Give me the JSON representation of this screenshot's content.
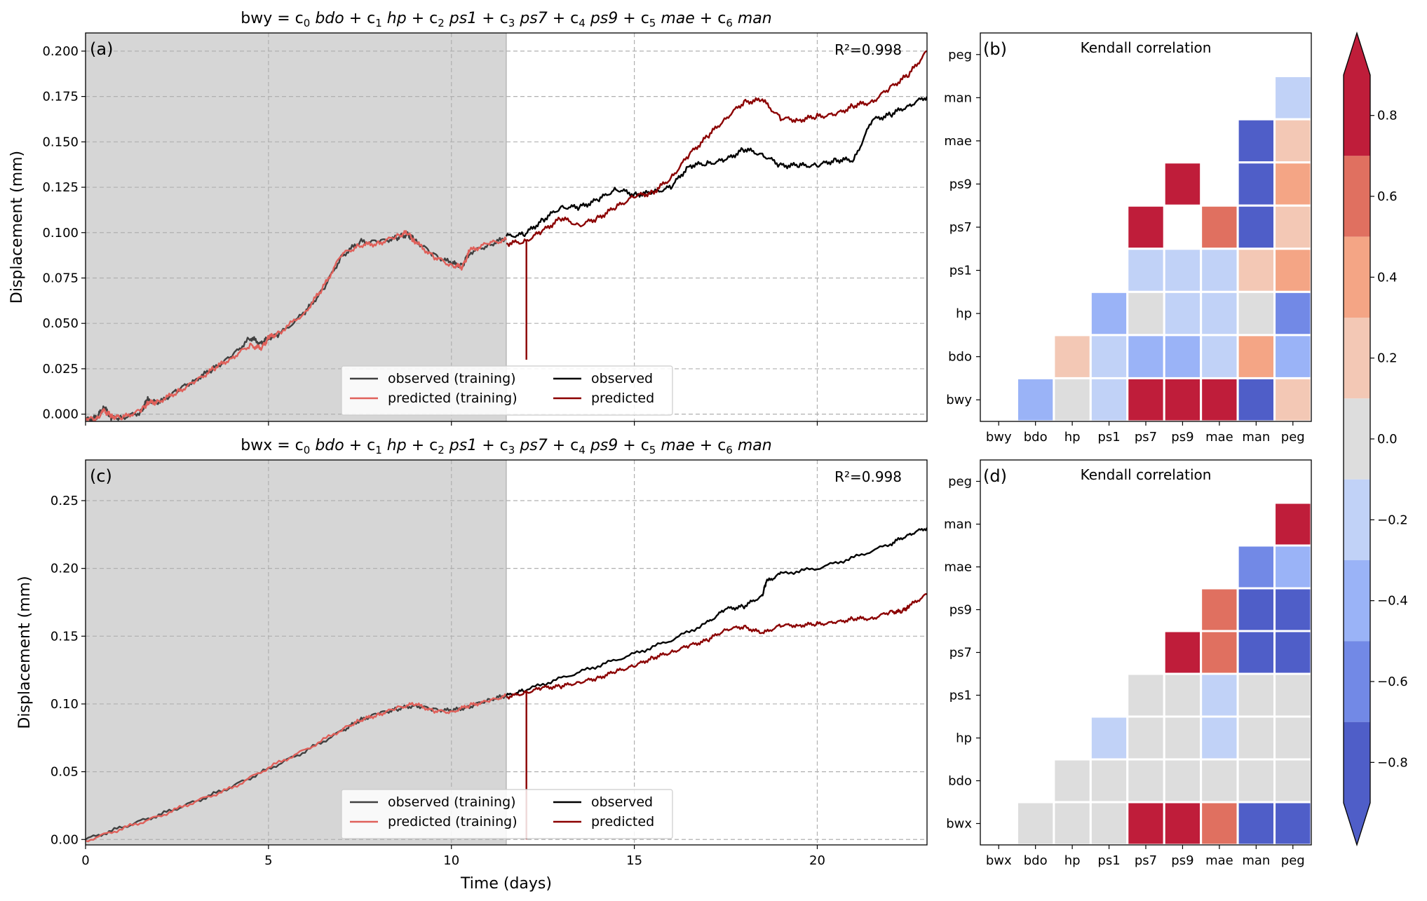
{
  "chart_data": [
    {
      "id": "a",
      "type": "line",
      "panel_label": "(a)",
      "title_parts": {
        "target": "bwy",
        "coefs": [
          "c",
          "c",
          "c",
          "c",
          "c",
          "c",
          "c"
        ],
        "subs": [
          "0",
          "1",
          "2",
          "3",
          "4",
          "5",
          "6"
        ],
        "terms": [
          "bdo",
          "hp",
          "ps1",
          "ps7",
          "ps9",
          "mae",
          "man"
        ]
      },
      "annotation": "R²=0.998",
      "xlabel": "",
      "ylabel": "Displacement (mm)",
      "xlim": [
        0,
        23
      ],
      "ylim": [
        -0.004,
        0.21
      ],
      "xticks": [
        0,
        5,
        10,
        15,
        20
      ],
      "yticks": [
        0.0,
        0.025,
        0.05,
        0.075,
        0.1,
        0.125,
        0.15,
        0.175,
        0.2
      ],
      "ytick_labels": [
        "0.000",
        "0.025",
        "0.050",
        "0.075",
        "0.100",
        "0.125",
        "0.150",
        "0.175",
        "0.200"
      ],
      "show_xtick_labels": false,
      "grid": true,
      "training_end": 11.5,
      "spike": {
        "x": 12.05,
        "y_top": 0.096,
        "y_bottom": 0.03
      },
      "legend": {
        "placement": "lower-center",
        "entries": [
          "observed (training)",
          "predicted (training)",
          "observed",
          "predicted"
        ]
      },
      "series": [
        {
          "name": "observed (training)",
          "color": "#404040",
          "x": [
            0,
            0.3,
            0.5,
            0.7,
            1.0,
            1.5,
            1.7,
            2,
            2.5,
            3,
            3.5,
            4,
            4.5,
            4.8,
            5,
            5.3,
            6,
            6.5,
            7,
            7.5,
            8,
            8.5,
            8.8,
            9,
            9.5,
            10,
            10.3,
            10.5,
            11,
            11.5
          ],
          "y": [
            -0.003,
            -0.002,
            0.004,
            -0.002,
            -0.002,
            0.001,
            0.008,
            0.006,
            0.013,
            0.019,
            0.025,
            0.032,
            0.042,
            0.039,
            0.042,
            0.044,
            0.056,
            0.069,
            0.087,
            0.095,
            0.095,
            0.097,
            0.099,
            0.096,
            0.088,
            0.083,
            0.082,
            0.089,
            0.093,
            0.097
          ]
        },
        {
          "name": "predicted (training)",
          "color": "#e0605a",
          "x": [
            0,
            0.3,
            0.5,
            0.7,
            1.0,
            1.5,
            1.7,
            2,
            2.5,
            3,
            3.5,
            4,
            4.5,
            4.8,
            5,
            5.3,
            6,
            6.5,
            7,
            7.5,
            8,
            8.5,
            8.8,
            9,
            9.5,
            10,
            10.3,
            10.5,
            11,
            11.5
          ],
          "y": [
            -0.002,
            -0.003,
            0.002,
            -0.001,
            -0.002,
            0.002,
            0.006,
            0.007,
            0.012,
            0.018,
            0.025,
            0.031,
            0.038,
            0.036,
            0.042,
            0.045,
            0.056,
            0.07,
            0.088,
            0.093,
            0.094,
            0.098,
            0.1,
            0.095,
            0.087,
            0.082,
            0.081,
            0.09,
            0.094,
            0.096
          ]
        },
        {
          "name": "observed",
          "color": "#000000",
          "x": [
            11.5,
            12,
            12.5,
            13,
            13.5,
            14,
            14.5,
            15,
            15.5,
            16,
            16.5,
            17,
            17.5,
            18,
            18.5,
            19,
            19.5,
            20,
            20.5,
            21,
            21.5,
            22,
            22.5,
            23
          ],
          "y": [
            0.098,
            0.099,
            0.107,
            0.114,
            0.114,
            0.118,
            0.124,
            0.121,
            0.122,
            0.125,
            0.137,
            0.138,
            0.14,
            0.146,
            0.143,
            0.137,
            0.137,
            0.137,
            0.14,
            0.14,
            0.162,
            0.165,
            0.17,
            0.175
          ]
        },
        {
          "name": "predicted",
          "color": "#8b0000",
          "x": [
            11.5,
            12,
            12.5,
            13,
            13.5,
            14,
            14.5,
            15,
            15.5,
            16,
            16.5,
            17,
            17.5,
            18,
            18.5,
            19,
            19.5,
            20,
            20.5,
            21,
            21.5,
            22,
            22.5,
            23
          ],
          "y": [
            0.094,
            0.095,
            0.101,
            0.108,
            0.104,
            0.108,
            0.114,
            0.12,
            0.122,
            0.13,
            0.143,
            0.153,
            0.163,
            0.172,
            0.173,
            0.163,
            0.162,
            0.164,
            0.165,
            0.17,
            0.172,
            0.18,
            0.187,
            0.2
          ]
        }
      ]
    },
    {
      "id": "c",
      "type": "line",
      "panel_label": "(c)",
      "title_parts": {
        "target": "bwx",
        "coefs": [
          "c",
          "c",
          "c",
          "c",
          "c",
          "c",
          "c"
        ],
        "subs": [
          "0",
          "1",
          "2",
          "3",
          "4",
          "5",
          "6"
        ],
        "terms": [
          "bdo",
          "hp",
          "ps1",
          "ps7",
          "ps9",
          "mae",
          "man"
        ]
      },
      "annotation": "R²=0.998",
      "xlabel": "Time (days)",
      "ylabel": "Displacement (mm)",
      "xlim": [
        0,
        23
      ],
      "ylim": [
        -0.004,
        0.28
      ],
      "xticks": [
        0,
        5,
        10,
        15,
        20
      ],
      "yticks": [
        0.0,
        0.05,
        0.1,
        0.15,
        0.2,
        0.25
      ],
      "ytick_labels": [
        "0.00",
        "0.05",
        "0.10",
        "0.15",
        "0.20",
        "0.25"
      ],
      "show_xtick_labels": true,
      "grid": true,
      "training_end": 11.5,
      "spike": {
        "x": 12.05,
        "y_top": 0.11,
        "y_bottom": 0.0
      },
      "legend": {
        "placement": "lower-center",
        "entries": [
          "observed (training)",
          "predicted (training)",
          "observed",
          "predicted"
        ]
      },
      "series": [
        {
          "name": "observed (training)",
          "color": "#404040",
          "x": [
            0,
            1,
            2,
            3,
            4,
            5,
            6,
            7,
            7.5,
            8,
            8.5,
            9,
            9.5,
            10,
            10.5,
            11,
            11.5
          ],
          "y": [
            0.0,
            0.009,
            0.018,
            0.028,
            0.039,
            0.052,
            0.065,
            0.08,
            0.088,
            0.093,
            0.096,
            0.099,
            0.096,
            0.095,
            0.098,
            0.103,
            0.106
          ]
        },
        {
          "name": "predicted (training)",
          "color": "#e0605a",
          "x": [
            0,
            1,
            2,
            3,
            4,
            5,
            6,
            7,
            7.5,
            8,
            8.5,
            9,
            9.5,
            10,
            10.5,
            11,
            11.5
          ],
          "y": [
            -0.001,
            0.008,
            0.017,
            0.028,
            0.038,
            0.053,
            0.066,
            0.081,
            0.088,
            0.092,
            0.097,
            0.1,
            0.095,
            0.094,
            0.099,
            0.102,
            0.106
          ]
        },
        {
          "name": "observed",
          "color": "#000000",
          "x": [
            11.5,
            12,
            13,
            14,
            15,
            16,
            17,
            17.5,
            18,
            18.5,
            18.6,
            19,
            20,
            21,
            22,
            22.5,
            23
          ],
          "y": [
            0.106,
            0.11,
            0.119,
            0.128,
            0.137,
            0.147,
            0.16,
            0.17,
            0.172,
            0.18,
            0.19,
            0.196,
            0.2,
            0.208,
            0.218,
            0.225,
            0.23
          ]
        },
        {
          "name": "predicted",
          "color": "#8b0000",
          "x": [
            11.5,
            12,
            12.5,
            13,
            13.5,
            14,
            14.5,
            15,
            15.5,
            16,
            16.5,
            17,
            17.5,
            18,
            18.5,
            19,
            19.5,
            20,
            20.5,
            21,
            21.5,
            22,
            22.3,
            22.5,
            23
          ],
          "y": [
            0.105,
            0.108,
            0.112,
            0.113,
            0.116,
            0.119,
            0.124,
            0.128,
            0.134,
            0.138,
            0.143,
            0.147,
            0.155,
            0.157,
            0.152,
            0.158,
            0.158,
            0.159,
            0.16,
            0.163,
            0.163,
            0.168,
            0.168,
            0.172,
            0.181
          ]
        }
      ]
    },
    {
      "id": "b",
      "type": "heatmap",
      "panel_label": "(b)",
      "title": "Kendall correlation",
      "rows": [
        "peg",
        "man",
        "mae",
        "ps9",
        "ps7",
        "ps1",
        "hp",
        "bdo",
        "bwy"
      ],
      "cols": [
        "bwy",
        "bdo",
        "hp",
        "ps1",
        "ps7",
        "ps9",
        "mae",
        "man",
        "peg"
      ],
      "values": [
        [
          null,
          null,
          null,
          null,
          null,
          null,
          null,
          null,
          null
        ],
        [
          null,
          null,
          null,
          null,
          null,
          null,
          null,
          null,
          -0.2
        ],
        [
          null,
          null,
          null,
          null,
          null,
          null,
          null,
          -0.8,
          0.2
        ],
        [
          null,
          null,
          null,
          null,
          null,
          0.8,
          null,
          -0.8,
          0.4
        ],
        [
          null,
          null,
          null,
          null,
          0.8,
          null,
          0.6,
          -0.8,
          0.2
        ],
        [
          null,
          null,
          null,
          null,
          -0.2,
          -0.2,
          -0.2,
          0.2,
          0.4
        ],
        [
          null,
          null,
          null,
          -0.4,
          0.0,
          -0.2,
          -0.2,
          0.0,
          -0.6
        ],
        [
          null,
          null,
          0.2,
          -0.2,
          -0.4,
          -0.4,
          -0.2,
          0.4,
          -0.4
        ],
        [
          null,
          -0.4,
          0.0,
          -0.2,
          0.8,
          0.8,
          0.8,
          -0.8,
          0.2
        ]
      ]
    },
    {
      "id": "d",
      "type": "heatmap",
      "panel_label": "(d)",
      "title": "Kendall correlation",
      "rows": [
        "peg",
        "man",
        "mae",
        "ps9",
        "ps7",
        "ps1",
        "hp",
        "bdo",
        "bwx"
      ],
      "cols": [
        "bwx",
        "bdo",
        "hp",
        "ps1",
        "ps7",
        "ps9",
        "mae",
        "man",
        "peg"
      ],
      "values": [
        [
          null,
          null,
          null,
          null,
          null,
          null,
          null,
          null,
          null
        ],
        [
          null,
          null,
          null,
          null,
          null,
          null,
          null,
          null,
          0.8
        ],
        [
          null,
          null,
          null,
          null,
          null,
          null,
          null,
          -0.6,
          -0.4
        ],
        [
          null,
          null,
          null,
          null,
          null,
          null,
          0.6,
          -0.8,
          -0.8
        ],
        [
          null,
          null,
          null,
          null,
          null,
          0.8,
          0.6,
          -0.8,
          -0.8
        ],
        [
          null,
          null,
          null,
          null,
          0.0,
          0.0,
          -0.2,
          0.0,
          0.0
        ],
        [
          null,
          null,
          null,
          -0.2,
          0.0,
          0.0,
          -0.2,
          0.0,
          0.0
        ],
        [
          null,
          null,
          0.0,
          0.0,
          0.0,
          0.0,
          0.0,
          0.0,
          0.0
        ],
        [
          null,
          0.0,
          0.0,
          0.0,
          0.8,
          0.8,
          0.6,
          -0.8,
          -0.8
        ]
      ]
    }
  ],
  "colorbar": {
    "type": "colorbar",
    "range": [
      -0.9,
      0.9
    ],
    "ticks": [
      0.8,
      0.6,
      0.4,
      0.2,
      0.0,
      -0.2,
      -0.4,
      -0.6,
      -0.8
    ],
    "tick_labels": [
      "0.8",
      "0.6",
      "0.4",
      "0.2",
      "0.0",
      "−0.2",
      "−0.4",
      "−0.6",
      "−0.8"
    ],
    "bins": [
      {
        "from": 0.7,
        "to": 0.9,
        "color": "#bf1d3a"
      },
      {
        "from": 0.5,
        "to": 0.7,
        "color": "#e07060"
      },
      {
        "from": 0.3,
        "to": 0.5,
        "color": "#f4a585"
      },
      {
        "from": 0.1,
        "to": 0.3,
        "color": "#f3c8b5"
      },
      {
        "from": -0.1,
        "to": 0.1,
        "color": "#dddddd"
      },
      {
        "from": -0.3,
        "to": -0.1,
        "color": "#c1d2f7"
      },
      {
        "from": -0.5,
        "to": -0.3,
        "color": "#9ab3f7"
      },
      {
        "from": -0.7,
        "to": -0.5,
        "color": "#7289e6"
      },
      {
        "from": -0.9,
        "to": -0.7,
        "color": "#4f5ec8"
      }
    ],
    "extend_top_color": "#bf1d3a",
    "extend_bottom_color": "#4f5ec8"
  },
  "colors": {
    "training_shade": "#d6d6d6",
    "grid": "#b0b0b0",
    "empty_cell": "#ffffff"
  }
}
